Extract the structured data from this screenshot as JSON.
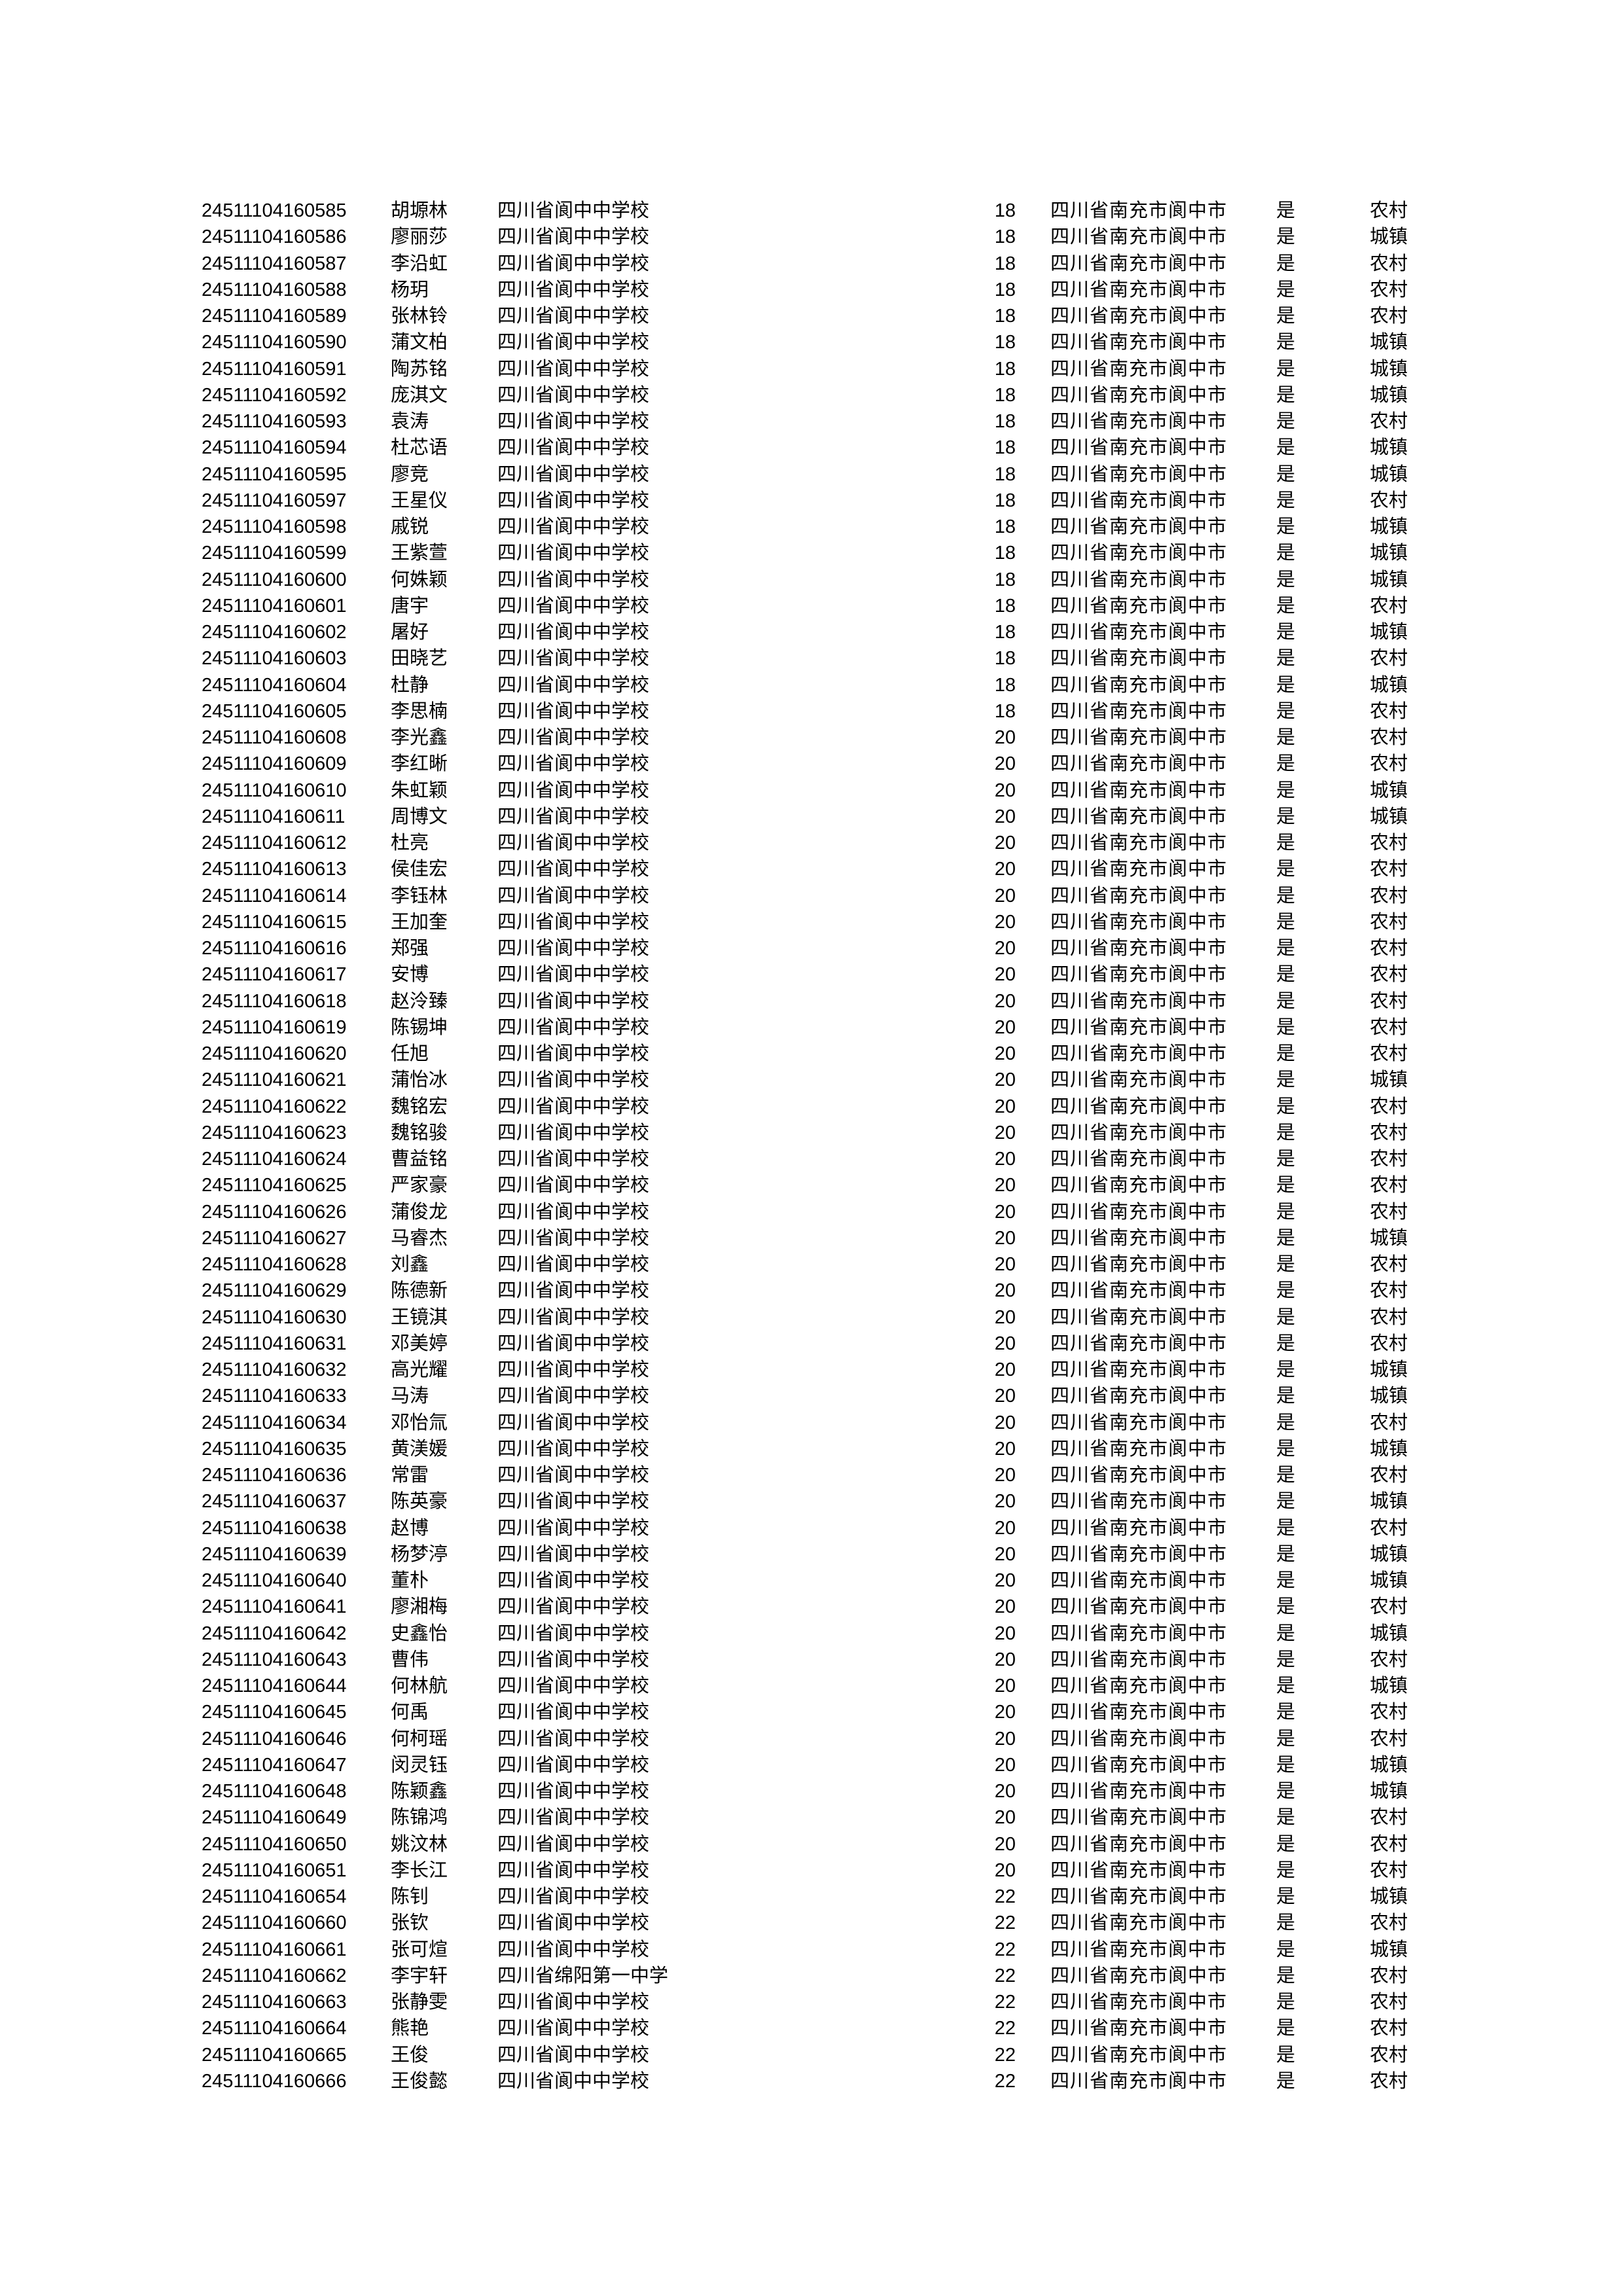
{
  "rows": [
    {
      "id": "24511104160585",
      "name": "胡塬林",
      "school": "四川省阆中中学校",
      "age": "18",
      "address": "四川省南充市阆中市",
      "flag": "是",
      "residence": "农村"
    },
    {
      "id": "24511104160586",
      "name": "廖丽莎",
      "school": "四川省阆中中学校",
      "age": "18",
      "address": "四川省南充市阆中市",
      "flag": "是",
      "residence": "城镇"
    },
    {
      "id": "24511104160587",
      "name": "李沿虹",
      "school": "四川省阆中中学校",
      "age": "18",
      "address": "四川省南充市阆中市",
      "flag": "是",
      "residence": "农村"
    },
    {
      "id": "24511104160588",
      "name": "杨玥",
      "school": "四川省阆中中学校",
      "age": "18",
      "address": "四川省南充市阆中市",
      "flag": "是",
      "residence": "农村"
    },
    {
      "id": "24511104160589",
      "name": "张林铃",
      "school": "四川省阆中中学校",
      "age": "18",
      "address": "四川省南充市阆中市",
      "flag": "是",
      "residence": "农村"
    },
    {
      "id": "24511104160590",
      "name": "蒲文柏",
      "school": "四川省阆中中学校",
      "age": "18",
      "address": "四川省南充市阆中市",
      "flag": "是",
      "residence": "城镇"
    },
    {
      "id": "24511104160591",
      "name": "陶苏铭",
      "school": "四川省阆中中学校",
      "age": "18",
      "address": "四川省南充市阆中市",
      "flag": "是",
      "residence": "城镇"
    },
    {
      "id": "24511104160592",
      "name": "庞淇文",
      "school": "四川省阆中中学校",
      "age": "18",
      "address": "四川省南充市阆中市",
      "flag": "是",
      "residence": "城镇"
    },
    {
      "id": "24511104160593",
      "name": "袁涛",
      "school": "四川省阆中中学校",
      "age": "18",
      "address": "四川省南充市阆中市",
      "flag": "是",
      "residence": "农村"
    },
    {
      "id": "24511104160594",
      "name": "杜芯语",
      "school": "四川省阆中中学校",
      "age": "18",
      "address": "四川省南充市阆中市",
      "flag": "是",
      "residence": "城镇"
    },
    {
      "id": "24511104160595",
      "name": "廖竞",
      "school": "四川省阆中中学校",
      "age": "18",
      "address": "四川省南充市阆中市",
      "flag": "是",
      "residence": "城镇"
    },
    {
      "id": "24511104160597",
      "name": "王星仪",
      "school": "四川省阆中中学校",
      "age": "18",
      "address": "四川省南充市阆中市",
      "flag": "是",
      "residence": "农村"
    },
    {
      "id": "24511104160598",
      "name": "戚锐",
      "school": "四川省阆中中学校",
      "age": "18",
      "address": "四川省南充市阆中市",
      "flag": "是",
      "residence": "城镇"
    },
    {
      "id": "24511104160599",
      "name": "王紫萱",
      "school": "四川省阆中中学校",
      "age": "18",
      "address": "四川省南充市阆中市",
      "flag": "是",
      "residence": "城镇"
    },
    {
      "id": "24511104160600",
      "name": "何姝颖",
      "school": "四川省阆中中学校",
      "age": "18",
      "address": "四川省南充市阆中市",
      "flag": "是",
      "residence": "城镇"
    },
    {
      "id": "24511104160601",
      "name": "唐宇",
      "school": "四川省阆中中学校",
      "age": "18",
      "address": "四川省南充市阆中市",
      "flag": "是",
      "residence": "农村"
    },
    {
      "id": "24511104160602",
      "name": "屠好",
      "school": "四川省阆中中学校",
      "age": "18",
      "address": "四川省南充市阆中市",
      "flag": "是",
      "residence": "城镇"
    },
    {
      "id": "24511104160603",
      "name": "田晓艺",
      "school": "四川省阆中中学校",
      "age": "18",
      "address": "四川省南充市阆中市",
      "flag": "是",
      "residence": "农村"
    },
    {
      "id": "24511104160604",
      "name": "杜静",
      "school": "四川省阆中中学校",
      "age": "18",
      "address": "四川省南充市阆中市",
      "flag": "是",
      "residence": "城镇"
    },
    {
      "id": "24511104160605",
      "name": "李思楠",
      "school": "四川省阆中中学校",
      "age": "18",
      "address": "四川省南充市阆中市",
      "flag": "是",
      "residence": "农村"
    },
    {
      "id": "24511104160608",
      "name": "李光鑫",
      "school": "四川省阆中中学校",
      "age": "20",
      "address": "四川省南充市阆中市",
      "flag": "是",
      "residence": "农村"
    },
    {
      "id": "24511104160609",
      "name": "李红晰",
      "school": "四川省阆中中学校",
      "age": "20",
      "address": "四川省南充市阆中市",
      "flag": "是",
      "residence": "农村"
    },
    {
      "id": "24511104160610",
      "name": "朱虹颖",
      "school": "四川省阆中中学校",
      "age": "20",
      "address": "四川省南充市阆中市",
      "flag": "是",
      "residence": "城镇"
    },
    {
      "id": "24511104160611",
      "name": "周博文",
      "school": "四川省阆中中学校",
      "age": "20",
      "address": "四川省南充市阆中市",
      "flag": "是",
      "residence": "城镇"
    },
    {
      "id": "24511104160612",
      "name": "杜亮",
      "school": "四川省阆中中学校",
      "age": "20",
      "address": "四川省南充市阆中市",
      "flag": "是",
      "residence": "农村"
    },
    {
      "id": "24511104160613",
      "name": "侯佳宏",
      "school": "四川省阆中中学校",
      "age": "20",
      "address": "四川省南充市阆中市",
      "flag": "是",
      "residence": "农村"
    },
    {
      "id": "24511104160614",
      "name": "李钰林",
      "school": "四川省阆中中学校",
      "age": "20",
      "address": "四川省南充市阆中市",
      "flag": "是",
      "residence": "农村"
    },
    {
      "id": "24511104160615",
      "name": "王加奎",
      "school": "四川省阆中中学校",
      "age": "20",
      "address": "四川省南充市阆中市",
      "flag": "是",
      "residence": "农村"
    },
    {
      "id": "24511104160616",
      "name": "郑强",
      "school": "四川省阆中中学校",
      "age": "20",
      "address": "四川省南充市阆中市",
      "flag": "是",
      "residence": "农村"
    },
    {
      "id": "24511104160617",
      "name": "安博",
      "school": "四川省阆中中学校",
      "age": "20",
      "address": "四川省南充市阆中市",
      "flag": "是",
      "residence": "农村"
    },
    {
      "id": "24511104160618",
      "name": "赵泠臻",
      "school": "四川省阆中中学校",
      "age": "20",
      "address": "四川省南充市阆中市",
      "flag": "是",
      "residence": "农村"
    },
    {
      "id": "24511104160619",
      "name": "陈锡坤",
      "school": "四川省阆中中学校",
      "age": "20",
      "address": "四川省南充市阆中市",
      "flag": "是",
      "residence": "农村"
    },
    {
      "id": "24511104160620",
      "name": "任旭",
      "school": "四川省阆中中学校",
      "age": "20",
      "address": "四川省南充市阆中市",
      "flag": "是",
      "residence": "农村"
    },
    {
      "id": "24511104160621",
      "name": "蒲怡冰",
      "school": "四川省阆中中学校",
      "age": "20",
      "address": "四川省南充市阆中市",
      "flag": "是",
      "residence": "城镇"
    },
    {
      "id": "24511104160622",
      "name": "魏铭宏",
      "school": "四川省阆中中学校",
      "age": "20",
      "address": "四川省南充市阆中市",
      "flag": "是",
      "residence": "农村"
    },
    {
      "id": "24511104160623",
      "name": "魏铭骏",
      "school": "四川省阆中中学校",
      "age": "20",
      "address": "四川省南充市阆中市",
      "flag": "是",
      "residence": "农村"
    },
    {
      "id": "24511104160624",
      "name": "曹益铭",
      "school": "四川省阆中中学校",
      "age": "20",
      "address": "四川省南充市阆中市",
      "flag": "是",
      "residence": "农村"
    },
    {
      "id": "24511104160625",
      "name": "严家豪",
      "school": "四川省阆中中学校",
      "age": "20",
      "address": "四川省南充市阆中市",
      "flag": "是",
      "residence": "农村"
    },
    {
      "id": "24511104160626",
      "name": "蒲俊龙",
      "school": "四川省阆中中学校",
      "age": "20",
      "address": "四川省南充市阆中市",
      "flag": "是",
      "residence": "农村"
    },
    {
      "id": "24511104160627",
      "name": "马睿杰",
      "school": "四川省阆中中学校",
      "age": "20",
      "address": "四川省南充市阆中市",
      "flag": "是",
      "residence": "城镇"
    },
    {
      "id": "24511104160628",
      "name": "刘鑫",
      "school": "四川省阆中中学校",
      "age": "20",
      "address": "四川省南充市阆中市",
      "flag": "是",
      "residence": "农村"
    },
    {
      "id": "24511104160629",
      "name": "陈德新",
      "school": "四川省阆中中学校",
      "age": "20",
      "address": "四川省南充市阆中市",
      "flag": "是",
      "residence": "农村"
    },
    {
      "id": "24511104160630",
      "name": "王镜淇",
      "school": "四川省阆中中学校",
      "age": "20",
      "address": "四川省南充市阆中市",
      "flag": "是",
      "residence": "农村"
    },
    {
      "id": "24511104160631",
      "name": "邓美婷",
      "school": "四川省阆中中学校",
      "age": "20",
      "address": "四川省南充市阆中市",
      "flag": "是",
      "residence": "农村"
    },
    {
      "id": "24511104160632",
      "name": "高光耀",
      "school": "四川省阆中中学校",
      "age": "20",
      "address": "四川省南充市阆中市",
      "flag": "是",
      "residence": "城镇"
    },
    {
      "id": "24511104160633",
      "name": "马涛",
      "school": "四川省阆中中学校",
      "age": "20",
      "address": "四川省南充市阆中市",
      "flag": "是",
      "residence": "城镇"
    },
    {
      "id": "24511104160634",
      "name": "邓怡氚",
      "school": "四川省阆中中学校",
      "age": "20",
      "address": "四川省南充市阆中市",
      "flag": "是",
      "residence": "农村"
    },
    {
      "id": "24511104160635",
      "name": "黄渼媛",
      "school": "四川省阆中中学校",
      "age": "20",
      "address": "四川省南充市阆中市",
      "flag": "是",
      "residence": "城镇"
    },
    {
      "id": "24511104160636",
      "name": "常雷",
      "school": "四川省阆中中学校",
      "age": "20",
      "address": "四川省南充市阆中市",
      "flag": "是",
      "residence": "农村"
    },
    {
      "id": "24511104160637",
      "name": "陈英豪",
      "school": "四川省阆中中学校",
      "age": "20",
      "address": "四川省南充市阆中市",
      "flag": "是",
      "residence": "城镇"
    },
    {
      "id": "24511104160638",
      "name": "赵博",
      "school": "四川省阆中中学校",
      "age": "20",
      "address": "四川省南充市阆中市",
      "flag": "是",
      "residence": "农村"
    },
    {
      "id": "24511104160639",
      "name": "杨梦渟",
      "school": "四川省阆中中学校",
      "age": "20",
      "address": "四川省南充市阆中市",
      "flag": "是",
      "residence": "城镇"
    },
    {
      "id": "24511104160640",
      "name": "董朴",
      "school": "四川省阆中中学校",
      "age": "20",
      "address": "四川省南充市阆中市",
      "flag": "是",
      "residence": "城镇"
    },
    {
      "id": "24511104160641",
      "name": "廖湘梅",
      "school": "四川省阆中中学校",
      "age": "20",
      "address": "四川省南充市阆中市",
      "flag": "是",
      "residence": "农村"
    },
    {
      "id": "24511104160642",
      "name": "史鑫怡",
      "school": "四川省阆中中学校",
      "age": "20",
      "address": "四川省南充市阆中市",
      "flag": "是",
      "residence": "城镇"
    },
    {
      "id": "24511104160643",
      "name": "曹伟",
      "school": "四川省阆中中学校",
      "age": "20",
      "address": "四川省南充市阆中市",
      "flag": "是",
      "residence": "农村"
    },
    {
      "id": "24511104160644",
      "name": "何林航",
      "school": "四川省阆中中学校",
      "age": "20",
      "address": "四川省南充市阆中市",
      "flag": "是",
      "residence": "城镇"
    },
    {
      "id": "24511104160645",
      "name": "何禹",
      "school": "四川省阆中中学校",
      "age": "20",
      "address": "四川省南充市阆中市",
      "flag": "是",
      "residence": "农村"
    },
    {
      "id": "24511104160646",
      "name": "何柯瑶",
      "school": "四川省阆中中学校",
      "age": "20",
      "address": "四川省南充市阆中市",
      "flag": "是",
      "residence": "农村"
    },
    {
      "id": "24511104160647",
      "name": "闵灵钰",
      "school": "四川省阆中中学校",
      "age": "20",
      "address": "四川省南充市阆中市",
      "flag": "是",
      "residence": "城镇"
    },
    {
      "id": "24511104160648",
      "name": "陈颖鑫",
      "school": "四川省阆中中学校",
      "age": "20",
      "address": "四川省南充市阆中市",
      "flag": "是",
      "residence": "城镇"
    },
    {
      "id": "24511104160649",
      "name": "陈锦鸿",
      "school": "四川省阆中中学校",
      "age": "20",
      "address": "四川省南充市阆中市",
      "flag": "是",
      "residence": "农村"
    },
    {
      "id": "24511104160650",
      "name": "姚汶林",
      "school": "四川省阆中中学校",
      "age": "20",
      "address": "四川省南充市阆中市",
      "flag": "是",
      "residence": "农村"
    },
    {
      "id": "24511104160651",
      "name": "李长江",
      "school": "四川省阆中中学校",
      "age": "20",
      "address": "四川省南充市阆中市",
      "flag": "是",
      "residence": "农村"
    },
    {
      "id": "24511104160654",
      "name": "陈钊",
      "school": "四川省阆中中学校",
      "age": "22",
      "address": "四川省南充市阆中市",
      "flag": "是",
      "residence": "城镇"
    },
    {
      "id": "24511104160660",
      "name": "张钦",
      "school": "四川省阆中中学校",
      "age": "22",
      "address": "四川省南充市阆中市",
      "flag": "是",
      "residence": "农村"
    },
    {
      "id": "24511104160661",
      "name": "张可煊",
      "school": "四川省阆中中学校",
      "age": "22",
      "address": "四川省南充市阆中市",
      "flag": "是",
      "residence": "城镇"
    },
    {
      "id": "24511104160662",
      "name": "李宇轩",
      "school": "四川省绵阳第一中学",
      "age": "22",
      "address": "四川省南充市阆中市",
      "flag": "是",
      "residence": "农村"
    },
    {
      "id": "24511104160663",
      "name": "张静雯",
      "school": "四川省阆中中学校",
      "age": "22",
      "address": "四川省南充市阆中市",
      "flag": "是",
      "residence": "农村"
    },
    {
      "id": "24511104160664",
      "name": "熊艳",
      "school": "四川省阆中中学校",
      "age": "22",
      "address": "四川省南充市阆中市",
      "flag": "是",
      "residence": "农村"
    },
    {
      "id": "24511104160665",
      "name": "王俊",
      "school": "四川省阆中中学校",
      "age": "22",
      "address": "四川省南充市阆中市",
      "flag": "是",
      "residence": "农村"
    },
    {
      "id": "24511104160666",
      "name": "王俊懿",
      "school": "四川省阆中中学校",
      "age": "22",
      "address": "四川省南充市阆中市",
      "flag": "是",
      "residence": "农村"
    }
  ]
}
